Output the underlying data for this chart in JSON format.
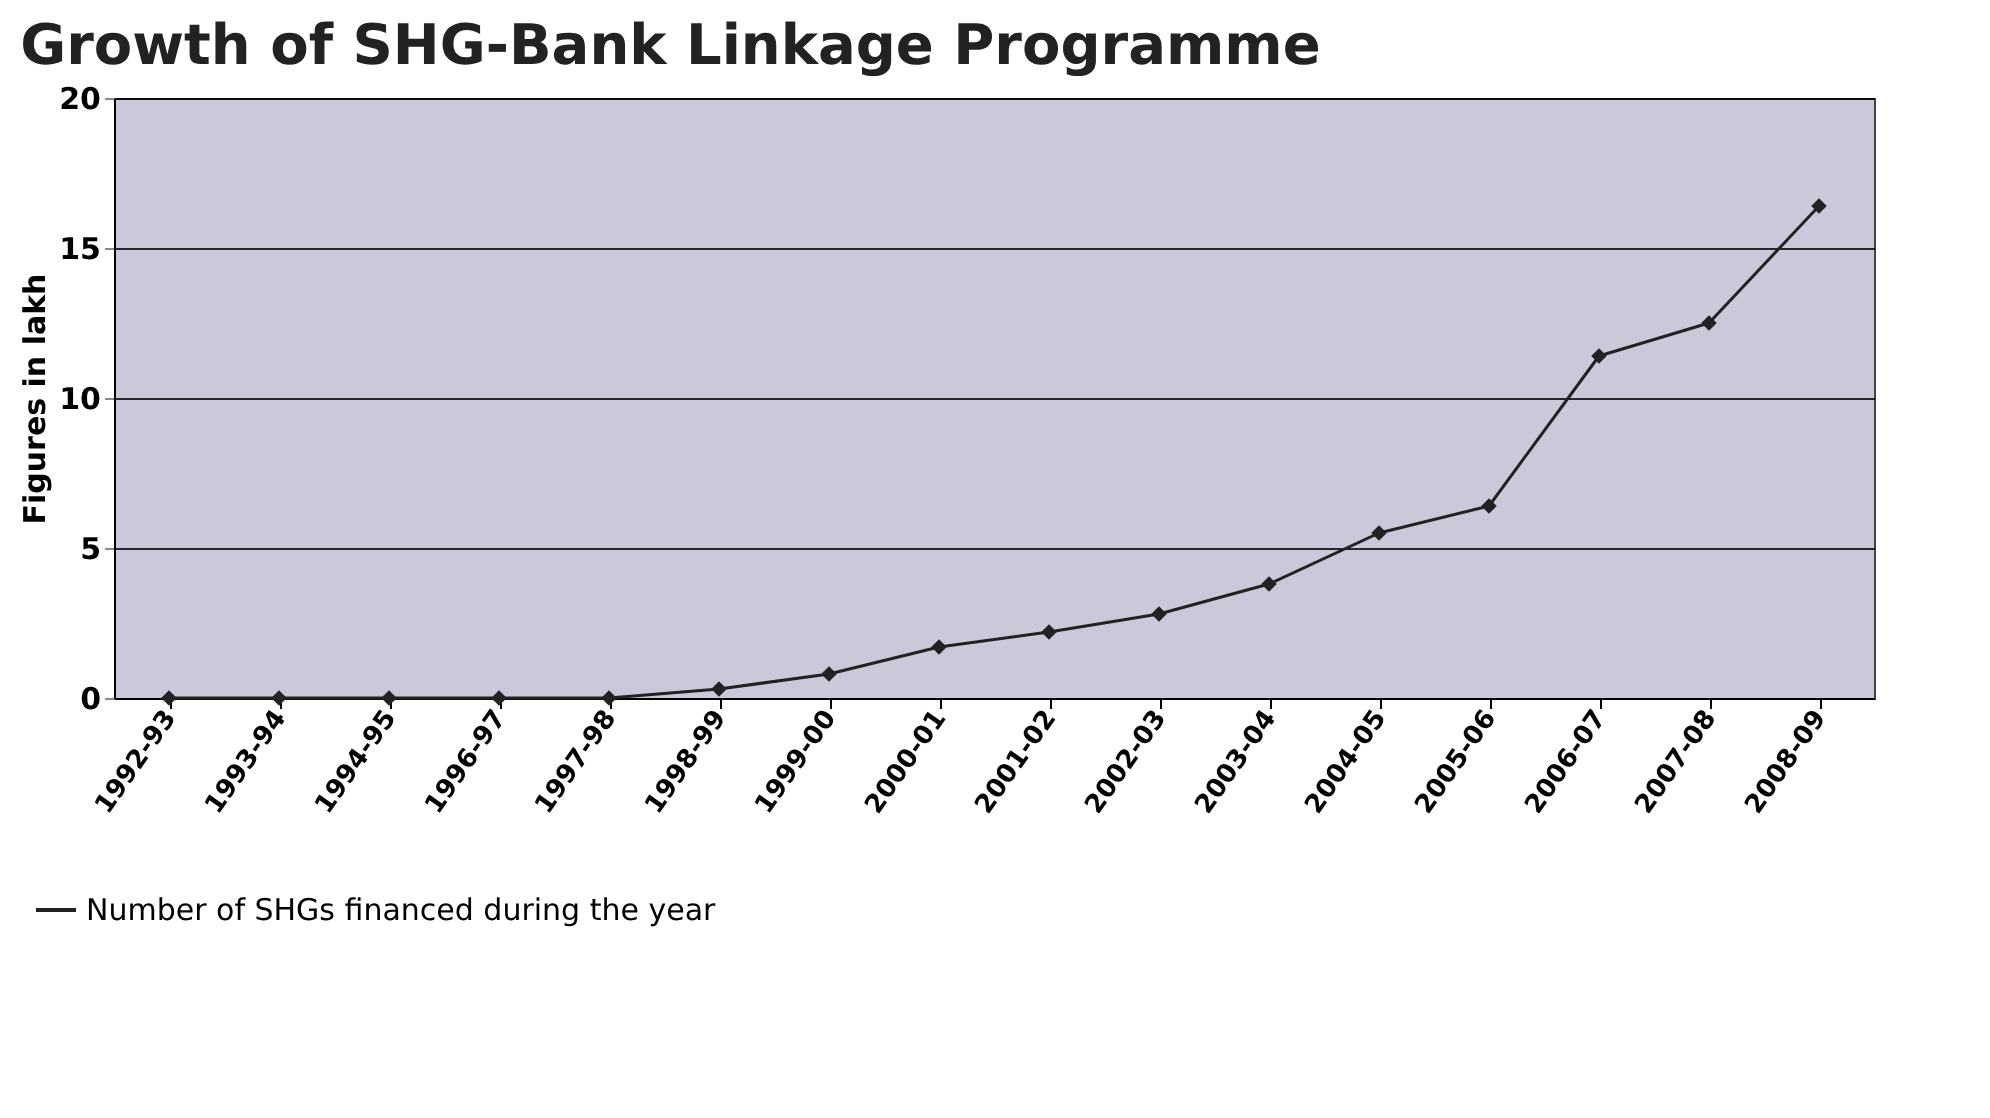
{
  "chart_data": {
    "type": "line",
    "title": "Growth of SHG-Bank Linkage Programme",
    "ylabel": "Figures in lakh",
    "categories": [
      "1992-93",
      "1993-94",
      "1994-95",
      "1996-97",
      "1997-98",
      "1998-99",
      "1999-00",
      "2000-01",
      "2001-02",
      "2002-03",
      "2003-04",
      "2004-05",
      "2005-06",
      "2006-07",
      "2007-08",
      "2008-09"
    ],
    "series": [
      {
        "name": "Number of SHGs financed during the year",
        "color": "#222222",
        "values": [
          0,
          0,
          0,
          0,
          0,
          0.3,
          0.8,
          1.7,
          2.2,
          2.8,
          3.8,
          5.5,
          6.4,
          11.4,
          12.5,
          16.4
        ]
      }
    ],
    "ylim": [
      0,
      20
    ],
    "yticks": [
      0,
      5,
      10,
      15,
      20
    ],
    "grid": "y",
    "legend": "bottom left",
    "marker": "diamond",
    "line_style": "solid"
  }
}
